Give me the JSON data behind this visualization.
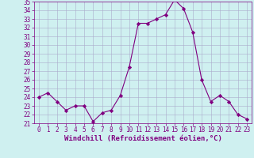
{
  "x": [
    0,
    1,
    2,
    3,
    4,
    5,
    6,
    7,
    8,
    9,
    10,
    11,
    12,
    13,
    14,
    15,
    16,
    17,
    18,
    19,
    20,
    21,
    22,
    23
  ],
  "y": [
    24.0,
    24.5,
    23.5,
    22.5,
    23.0,
    23.0,
    21.2,
    22.2,
    22.5,
    24.2,
    27.5,
    32.5,
    32.5,
    33.0,
    33.5,
    35.2,
    34.2,
    31.5,
    26.0,
    23.5,
    24.2,
    23.5,
    22.0,
    21.5
  ],
  "line_color": "#800080",
  "marker": "D",
  "marker_size": 2.2,
  "bg_color": "#cff0f0",
  "grid_color": "#aaaacc",
  "xlabel": "Windchill (Refroidissement éolien,°C)",
  "xlabel_color": "#800080",
  "tick_color": "#800080",
  "ylim": [
    21,
    35
  ],
  "xlim": [
    -0.5,
    23.5
  ],
  "yticks": [
    21,
    22,
    23,
    24,
    25,
    26,
    27,
    28,
    29,
    30,
    31,
    32,
    33,
    34,
    35
  ],
  "xticks": [
    0,
    1,
    2,
    3,
    4,
    5,
    6,
    7,
    8,
    9,
    10,
    11,
    12,
    13,
    14,
    15,
    16,
    17,
    18,
    19,
    20,
    21,
    22,
    23
  ],
  "tick_fontsize": 5.5,
  "xlabel_fontsize": 6.5
}
